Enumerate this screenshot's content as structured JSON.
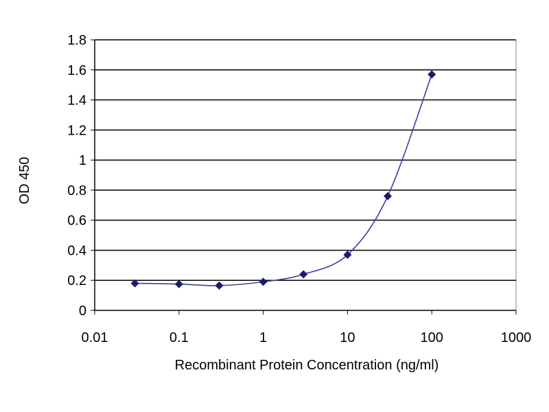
{
  "chart_data": {
    "type": "scatter",
    "title": "",
    "xlabel": "Recombinant Protein Concentration (ng/ml)",
    "ylabel": "OD 450",
    "x_scale": "log",
    "xlim": [
      0.01,
      1000
    ],
    "ylim": [
      0,
      1.8
    ],
    "x_ticks": [
      "0.01",
      "0.1",
      "1",
      "10",
      "100",
      "1000"
    ],
    "y_ticks": [
      "0",
      "0.2",
      "0.4",
      "0.6",
      "0.8",
      "1",
      "1.2",
      "1.4",
      "1.6",
      "1.8"
    ],
    "grid": "horizontal",
    "legend": "none",
    "series": [
      {
        "x": [
          0.03,
          0.1,
          0.3,
          1,
          3,
          10,
          30,
          100
        ],
        "y": [
          0.18,
          0.175,
          0.165,
          0.19,
          0.24,
          0.37,
          0.76,
          1.57
        ]
      }
    ],
    "colors": {
      "line": "#3b3fa0",
      "marker": "#1a1a6e",
      "grid": "#000000",
      "frame": "#888888"
    }
  }
}
